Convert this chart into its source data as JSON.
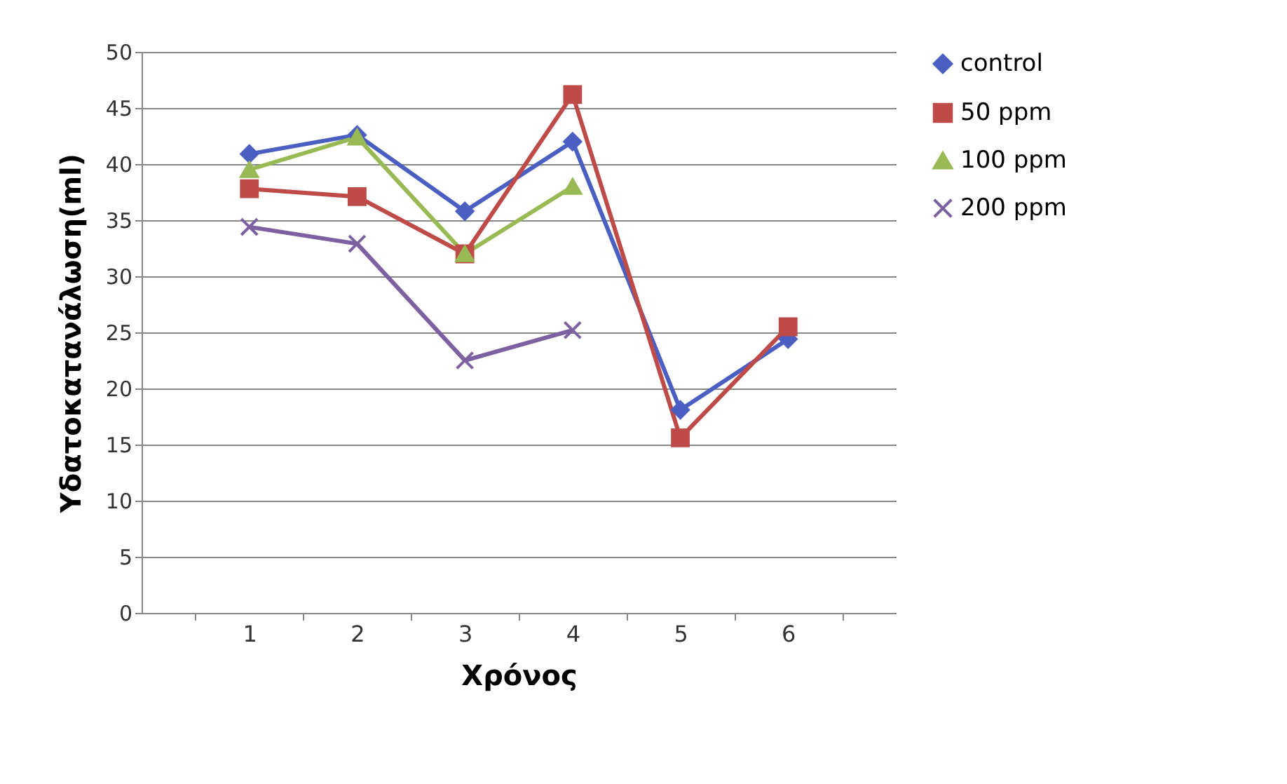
{
  "chart_data": {
    "type": "line",
    "xlabel": "Χρόνος",
    "ylabel": "Υδατοκατανάλωση(ml)",
    "categories": [
      "1",
      "2",
      "3",
      "4",
      "5",
      "6"
    ],
    "ylim": [
      0,
      50
    ],
    "yticks": [
      0,
      5,
      10,
      15,
      20,
      25,
      30,
      35,
      40,
      45,
      50
    ],
    "grid": "y",
    "legend": "right",
    "series": [
      {
        "name": "control",
        "color": "#4a5fc1",
        "marker": "diamond",
        "values": [
          40.9,
          42.6,
          35.8,
          42,
          18.1,
          24.4
        ]
      },
      {
        "name": "50 ppm",
        "color": "#be4b48",
        "marker": "square",
        "values": [
          37.8,
          37.1,
          32,
          46.2,
          15.6,
          25.5
        ]
      },
      {
        "name": "100 ppm",
        "color": "#98b954",
        "marker": "triangle",
        "values": [
          39.5,
          42.4,
          32,
          38,
          null,
          null
        ]
      },
      {
        "name": "200 ppm",
        "color": "#7d60a0",
        "marker": "cross",
        "values": [
          34.4,
          32.9,
          22.5,
          25.2,
          null,
          null
        ]
      }
    ]
  }
}
